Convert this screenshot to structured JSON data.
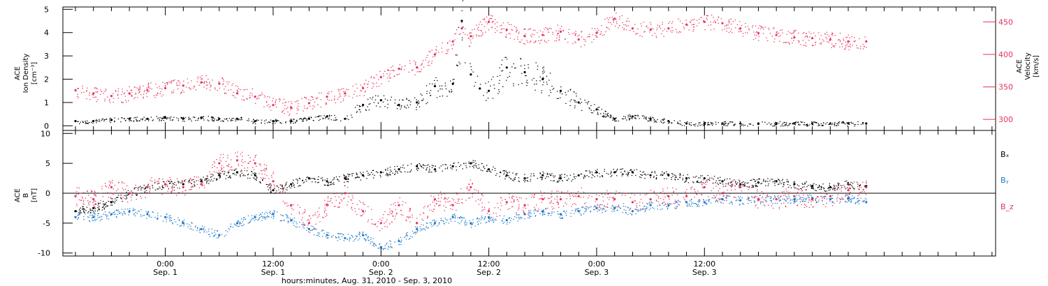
{
  "chart_data": [
    {
      "type": "scatter",
      "title": "",
      "ylabel_left": [
        "ACE",
        "Ion Density",
        "[cm⁻³]"
      ],
      "ylabel_right": [
        "ACE",
        "Velocity",
        "[km/s]"
      ],
      "ylim_left": [
        -0.2,
        5.1
      ],
      "ylim_right": [
        283,
        473
      ],
      "yticks_left": [
        "0",
        "1",
        "2",
        "3",
        "4",
        "5"
      ],
      "yticks_right": [
        "300",
        "350",
        "400",
        "450"
      ],
      "colors": {
        "density": "#000000",
        "velocity": "#e8325a"
      },
      "series": [
        {
          "axis": "left",
          "color": "#000000",
          "x_hours": [
            -10,
            -8,
            -6,
            -4,
            -2,
            0,
            2,
            4,
            6,
            8,
            10,
            12,
            14,
            16,
            18,
            20,
            22,
            24,
            26,
            28,
            30,
            32,
            33,
            34,
            35,
            36,
            38,
            40,
            42,
            44,
            46,
            48,
            50,
            52,
            54,
            56,
            58,
            60,
            62,
            64,
            66,
            68,
            70,
            72,
            74,
            76,
            78
          ],
          "y": [
            0.2,
            0.2,
            0.25,
            0.3,
            0.3,
            0.35,
            0.3,
            0.35,
            0.3,
            0.3,
            0.2,
            0.2,
            0.2,
            0.3,
            0.4,
            0.3,
            0.9,
            1.1,
            0.9,
            1.0,
            1.7,
            1.8,
            4.5,
            2.2,
            1.6,
            1.5,
            2.5,
            2.3,
            2.0,
            1.5,
            1.0,
            0.7,
            0.3,
            0.4,
            0.3,
            0.2,
            0.1,
            0.1,
            0.1,
            0.1,
            0.1,
            0.1,
            0.1,
            0.1,
            0.1,
            0.1,
            0.1
          ]
        },
        {
          "axis": "right",
          "color": "#e8325a",
          "x_hours": [
            -10,
            -8,
            -6,
            -4,
            -2,
            0,
            2,
            4,
            6,
            8,
            10,
            12,
            14,
            16,
            18,
            20,
            22,
            24,
            26,
            28,
            30,
            32,
            33,
            34,
            36,
            38,
            40,
            42,
            44,
            46,
            48,
            50,
            52,
            54,
            56,
            58,
            60,
            62,
            64,
            66,
            68,
            70,
            72,
            74,
            76,
            78
          ],
          "y": [
            345,
            340,
            336,
            340,
            345,
            348,
            352,
            357,
            355,
            340,
            335,
            322,
            318,
            325,
            335,
            340,
            348,
            365,
            378,
            380,
            400,
            420,
            440,
            428,
            450,
            438,
            428,
            430,
            435,
            423,
            433,
            455,
            440,
            438,
            440,
            446,
            450,
            448,
            440,
            433,
            430,
            426,
            425,
            423,
            420,
            420
          ]
        }
      ]
    },
    {
      "type": "scatter",
      "title": "",
      "ylabel_left": [
        "ACE",
        "B",
        "[nT]"
      ],
      "ylim": [
        -10.5,
        10.5
      ],
      "yticks": [
        "-10",
        "-5",
        "0",
        "5",
        "10"
      ],
      "legend": [
        "Bₓ",
        "Bᵧ",
        "B_z"
      ],
      "legend_placement": "right",
      "zero_line": true,
      "colors": {
        "Bx": "#000000",
        "By": "#1e78c8",
        "Bz": "#e8325a"
      },
      "series": [
        {
          "name": "Bx",
          "color": "#000000",
          "x_hours": [
            -10,
            -8,
            -6,
            -4,
            -2,
            0,
            2,
            4,
            6,
            8,
            10,
            12,
            14,
            16,
            18,
            20,
            22,
            24,
            26,
            28,
            30,
            32,
            34,
            36,
            38,
            40,
            42,
            44,
            46,
            48,
            50,
            52,
            54,
            56,
            58,
            60,
            62,
            64,
            66,
            68,
            70,
            72,
            74,
            76,
            78
          ],
          "y": [
            -3,
            -2.5,
            -1.5,
            0,
            1,
            1.5,
            1.5,
            2,
            3,
            3.5,
            3,
            0.5,
            1.5,
            2.5,
            2,
            2.5,
            3,
            3.5,
            4,
            4.5,
            4,
            4.5,
            5,
            4,
            3,
            2.5,
            3,
            2.5,
            3,
            3.5,
            3.5,
            3.5,
            3,
            3,
            2.5,
            2.5,
            2,
            1.5,
            1.8,
            2,
            1.5,
            1.2,
            1,
            1.5,
            1.2
          ]
        },
        {
          "name": "By",
          "color": "#1e78c8",
          "x_hours": [
            -10,
            -8,
            -6,
            -4,
            -2,
            0,
            2,
            4,
            6,
            8,
            10,
            12,
            14,
            16,
            18,
            20,
            22,
            24,
            26,
            28,
            30,
            32,
            34,
            36,
            38,
            40,
            42,
            44,
            46,
            48,
            50,
            52,
            54,
            56,
            58,
            60,
            62,
            64,
            66,
            68,
            70,
            72,
            74,
            76,
            78
          ],
          "y": [
            -4,
            -4,
            -3.5,
            -3,
            -3.5,
            -4,
            -5,
            -6,
            -7,
            -5,
            -4,
            -3.5,
            -4.5,
            -6,
            -7,
            -7.5,
            -7,
            -9,
            -8,
            -6,
            -5,
            -4,
            -5,
            -4,
            -4.5,
            -3.5,
            -3,
            -3.5,
            -3,
            -2.5,
            -2.5,
            -3,
            -2,
            -2,
            -1.5,
            -1.5,
            -1,
            -1.2,
            -1,
            -1,
            -1,
            -0.8,
            -1,
            -0.8,
            -1.5
          ]
        },
        {
          "name": "Bz",
          "color": "#e8325a",
          "x_hours": [
            -10,
            -8,
            -6,
            -4,
            -2,
            0,
            2,
            4,
            6,
            8,
            10,
            12,
            14,
            16,
            18,
            20,
            22,
            24,
            26,
            28,
            30,
            32,
            34,
            36,
            38,
            40,
            42,
            44,
            46,
            48,
            50,
            52,
            54,
            56,
            58,
            60,
            62,
            64,
            66,
            68,
            70,
            72,
            74,
            76,
            78
          ],
          "y": [
            -0.5,
            -1,
            1,
            0,
            1,
            1.5,
            1,
            1.5,
            5,
            5.5,
            5,
            2,
            -2,
            -5,
            -2,
            0,
            -3,
            -5,
            -2,
            -5,
            -1,
            -2,
            1,
            -3,
            -1.5,
            -2,
            -1,
            -1,
            -0.5,
            -1,
            -1,
            -1.5,
            -1,
            -0.5,
            -0.5,
            1,
            0,
            1,
            -1,
            -1,
            -0.5,
            -1,
            -0.5,
            0.5,
            1
          ]
        }
      ]
    }
  ],
  "x_axis": {
    "ticks": [
      {
        "time": "0:00",
        "date": "Sep. 1"
      },
      {
        "time": "12:00",
        "date": "Sep. 1"
      },
      {
        "time": "0:00",
        "date": "Sep. 2"
      },
      {
        "time": "12:00",
        "date": "Sep. 2"
      },
      {
        "time": "0:00",
        "date": "Sep. 3"
      },
      {
        "time": "12:00",
        "date": "Sep. 3"
      }
    ],
    "tick_hours": [
      0,
      12,
      24,
      36,
      48,
      60
    ],
    "xlim_hours": [
      -11.4,
      92.4
    ],
    "label": "hours:minutes, Aug. 31, 2010 - Sep.  3, 2010"
  }
}
